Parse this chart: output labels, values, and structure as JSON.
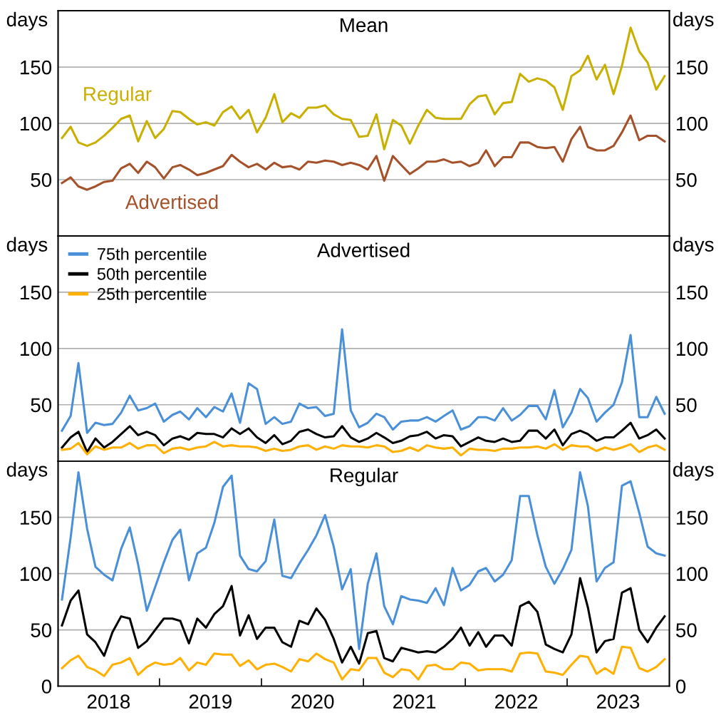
{
  "chart_data": [
    {
      "type": "line",
      "title": "Mean",
      "ylabel": "days",
      "y2label": "days",
      "x": [
        "2018-01-15",
        "2018-02-15",
        "2018-03-15",
        "2018-04-15",
        "2018-05-15",
        "2018-06-15",
        "2018-07-15",
        "2018-08-15",
        "2018-09-15",
        "2018-10-15",
        "2018-11-15",
        "2018-12-15",
        "2019-01-15",
        "2019-02-15",
        "2019-03-15",
        "2019-04-15",
        "2019-05-15",
        "2019-06-15",
        "2019-07-15",
        "2019-08-15",
        "2019-09-15",
        "2019-10-15",
        "2019-11-15",
        "2019-12-15",
        "2020-01-15",
        "2020-02-15",
        "2020-03-15",
        "2020-04-15",
        "2020-05-15",
        "2020-06-15",
        "2020-07-15",
        "2020-08-15",
        "2020-09-15",
        "2020-10-15",
        "2020-11-15",
        "2020-12-15",
        "2021-01-15",
        "2021-02-15",
        "2021-03-15",
        "2021-04-15",
        "2021-05-15",
        "2021-06-15",
        "2021-07-15",
        "2021-08-15",
        "2021-09-15",
        "2021-10-15",
        "2021-11-15",
        "2021-12-15",
        "2022-01-15",
        "2022-02-15",
        "2022-03-15",
        "2022-04-15",
        "2022-05-15",
        "2022-06-15",
        "2022-07-15",
        "2022-08-15",
        "2022-09-15",
        "2022-10-15",
        "2022-11-15",
        "2022-12-15",
        "2023-01-15",
        "2023-02-15",
        "2023-03-15",
        "2023-04-15",
        "2023-05-15",
        "2023-06-15",
        "2023-07-15",
        "2023-08-15",
        "2023-09-15",
        "2023-10-15",
        "2023-11-15",
        "2023-12-15"
      ],
      "series": [
        {
          "name": "Regular",
          "color": "#c9b000",
          "values": [
            87,
            97,
            83,
            80,
            83,
            89,
            96,
            104,
            107,
            84,
            102,
            87,
            95,
            111,
            110,
            104,
            99,
            101,
            98,
            110,
            115,
            104,
            112,
            92,
            105,
            126,
            101,
            109,
            105,
            114,
            114,
            116,
            108,
            104,
            103,
            88,
            89,
            108,
            77,
            103,
            98,
            82,
            98,
            112,
            105,
            104,
            104,
            104,
            117,
            124,
            125,
            108,
            118,
            119,
            144,
            137,
            140,
            138,
            132,
            112,
            142,
            147,
            160,
            139,
            152,
            126,
            151,
            185,
            164,
            154,
            130,
            142
          ]
        },
        {
          "name": "Advertised",
          "color": "#a5522a",
          "values": [
            47,
            52,
            44,
            41,
            44,
            48,
            49,
            60,
            64,
            56,
            66,
            61,
            51,
            61,
            63,
            59,
            54,
            56,
            59,
            62,
            72,
            66,
            61,
            64,
            59,
            65,
            61,
            62,
            59,
            66,
            65,
            67,
            66,
            63,
            65,
            63,
            59,
            71,
            49,
            71,
            63,
            55,
            60,
            66,
            66,
            68,
            65,
            66,
            62,
            65,
            76,
            62,
            70,
            70,
            83,
            83,
            79,
            78,
            79,
            66,
            86,
            97,
            79,
            76,
            76,
            80,
            92,
            107,
            85,
            89,
            89,
            84
          ]
        }
      ],
      "xlim": [
        "2018-01-01",
        "2024-01-01"
      ],
      "ylim": [
        0,
        200
      ],
      "yticks": [
        50,
        100,
        150
      ],
      "y2lim": [
        0,
        200
      ],
      "y2ticks": [
        50,
        100,
        150
      ],
      "grid": "y",
      "legend": false,
      "tick_labels": "y",
      "line_style": "solid",
      "marker": "none"
    },
    {
      "type": "line",
      "title": "Advertised",
      "ylabel": "days",
      "y2label": "days",
      "x": [
        "2018-01-15",
        "2018-02-15",
        "2018-03-15",
        "2018-04-15",
        "2018-05-15",
        "2018-06-15",
        "2018-07-15",
        "2018-08-15",
        "2018-09-15",
        "2018-10-15",
        "2018-11-15",
        "2018-12-15",
        "2019-01-15",
        "2019-02-15",
        "2019-03-15",
        "2019-04-15",
        "2019-05-15",
        "2019-06-15",
        "2019-07-15",
        "2019-08-15",
        "2019-09-15",
        "2019-10-15",
        "2019-11-15",
        "2019-12-15",
        "2020-01-15",
        "2020-02-15",
        "2020-03-15",
        "2020-04-15",
        "2020-05-15",
        "2020-06-15",
        "2020-07-15",
        "2020-08-15",
        "2020-09-15",
        "2020-10-15",
        "2020-11-15",
        "2020-12-15",
        "2021-01-15",
        "2021-02-15",
        "2021-03-15",
        "2021-04-15",
        "2021-05-15",
        "2021-06-15",
        "2021-07-15",
        "2021-08-15",
        "2021-09-15",
        "2021-10-15",
        "2021-11-15",
        "2021-12-15",
        "2022-01-15",
        "2022-02-15",
        "2022-03-15",
        "2022-04-15",
        "2022-05-15",
        "2022-06-15",
        "2022-07-15",
        "2022-08-15",
        "2022-09-15",
        "2022-10-15",
        "2022-11-15",
        "2022-12-15",
        "2023-01-15",
        "2023-02-15",
        "2023-03-15",
        "2023-04-15",
        "2023-05-15",
        "2023-06-15",
        "2023-07-15",
        "2023-08-15",
        "2023-09-15",
        "2023-10-15",
        "2023-11-15",
        "2023-12-15"
      ],
      "series": [
        {
          "name": "75th percentile",
          "color": "#4a90d9",
          "values": [
            27,
            40,
            87,
            25,
            34,
            32,
            33,
            43,
            58,
            45,
            47,
            51,
            35,
            41,
            44,
            37,
            47,
            39,
            48,
            44,
            60,
            34,
            69,
            64,
            33,
            39,
            33,
            35,
            51,
            47,
            48,
            40,
            42,
            117,
            45,
            30,
            34,
            42,
            39,
            28,
            35,
            36,
            36,
            39,
            35,
            40,
            45,
            28,
            31,
            39,
            39,
            36,
            47,
            36,
            41,
            49,
            49,
            37,
            63,
            30,
            43,
            64,
            56,
            35,
            43,
            50,
            70,
            112,
            39,
            39,
            57,
            42
          ]
        },
        {
          "name": "50th percentile",
          "color": "#000000",
          "values": [
            12,
            21,
            26,
            8,
            20,
            12,
            17,
            24,
            31,
            23,
            26,
            23,
            14,
            20,
            22,
            19,
            25,
            24,
            24,
            21,
            29,
            24,
            29,
            21,
            16,
            23,
            15,
            18,
            26,
            28,
            24,
            21,
            22,
            31,
            21,
            17,
            20,
            25,
            21,
            16,
            18,
            22,
            23,
            26,
            20,
            23,
            22,
            13,
            17,
            21,
            18,
            17,
            20,
            17,
            18,
            27,
            27,
            20,
            28,
            14,
            24,
            27,
            24,
            18,
            21,
            21,
            27,
            34,
            20,
            23,
            28,
            20
          ]
        },
        {
          "name": "25th percentile",
          "color": "#ffb000",
          "values": [
            10,
            11,
            16,
            6,
            13,
            10,
            12,
            12,
            16,
            11,
            14,
            14,
            7,
            11,
            12,
            10,
            12,
            13,
            17,
            13,
            14,
            13,
            13,
            12,
            9,
            11,
            9,
            10,
            13,
            14,
            10,
            13,
            11,
            14,
            13,
            13,
            12,
            14,
            13,
            8,
            9,
            12,
            9,
            14,
            12,
            11,
            12,
            5,
            11,
            10,
            10,
            9,
            11,
            11,
            12,
            12,
            13,
            11,
            15,
            10,
            14,
            13,
            13,
            9,
            12,
            10,
            12,
            15,
            8,
            12,
            14,
            10
          ]
        }
      ],
      "xlim": [
        "2018-01-01",
        "2024-01-01"
      ],
      "ylim": [
        0,
        200
      ],
      "yticks": [
        50,
        100,
        150
      ],
      "y2lim": [
        0,
        200
      ],
      "y2ticks": [
        50,
        100,
        150
      ],
      "grid": "y",
      "legend": "top left",
      "tick_labels": "y",
      "line_style": "solid",
      "marker": "none"
    },
    {
      "type": "line",
      "title": "Regular",
      "ylabel": "days",
      "y2label": "days",
      "x": [
        "2018-01-15",
        "2018-02-15",
        "2018-03-15",
        "2018-04-15",
        "2018-05-15",
        "2018-06-15",
        "2018-07-15",
        "2018-08-15",
        "2018-09-15",
        "2018-10-15",
        "2018-11-15",
        "2018-12-15",
        "2019-01-15",
        "2019-02-15",
        "2019-03-15",
        "2019-04-15",
        "2019-05-15",
        "2019-06-15",
        "2019-07-15",
        "2019-08-15",
        "2019-09-15",
        "2019-10-15",
        "2019-11-15",
        "2019-12-15",
        "2020-01-15",
        "2020-02-15",
        "2020-03-15",
        "2020-04-15",
        "2020-05-15",
        "2020-06-15",
        "2020-07-15",
        "2020-08-15",
        "2020-09-15",
        "2020-10-15",
        "2020-11-15",
        "2020-12-15",
        "2021-01-15",
        "2021-02-15",
        "2021-03-15",
        "2021-04-15",
        "2021-05-15",
        "2021-06-15",
        "2021-07-15",
        "2021-08-15",
        "2021-09-15",
        "2021-10-15",
        "2021-11-15",
        "2021-12-15",
        "2022-01-15",
        "2022-02-15",
        "2022-03-15",
        "2022-04-15",
        "2022-05-15",
        "2022-06-15",
        "2022-07-15",
        "2022-08-15",
        "2022-09-15",
        "2022-10-15",
        "2022-11-15",
        "2022-12-15",
        "2023-01-15",
        "2023-02-15",
        "2023-03-15",
        "2023-04-15",
        "2023-05-15",
        "2023-06-15",
        "2023-07-15",
        "2023-08-15",
        "2023-09-15",
        "2023-10-15",
        "2023-11-15",
        "2023-12-15"
      ],
      "series": [
        {
          "color": "#4a90d9",
          "values": [
            77,
            132,
            190,
            140,
            106,
            99,
            94,
            122,
            141,
            108,
            67,
            88,
            110,
            130,
            139,
            94,
            118,
            123,
            145,
            177,
            187,
            116,
            104,
            102,
            111,
            148,
            98,
            96,
            109,
            121,
            134,
            152,
            124,
            86,
            104,
            33,
            91,
            118,
            71,
            55,
            80,
            77,
            76,
            74,
            87,
            72,
            105,
            85,
            90,
            102,
            105,
            93,
            99,
            112,
            169,
            169,
            134,
            106,
            91,
            104,
            121,
            190,
            160,
            93,
            105,
            110,
            178,
            182,
            154,
            124,
            118,
            116
          ]
        },
        {
          "color": "#000000",
          "values": [
            54,
            76,
            85,
            46,
            39,
            27,
            48,
            62,
            60,
            34,
            40,
            50,
            60,
            60,
            58,
            38,
            60,
            52,
            64,
            71,
            89,
            45,
            63,
            42,
            52,
            52,
            39,
            35,
            58,
            55,
            69,
            59,
            42,
            21,
            35,
            20,
            47,
            49,
            25,
            22,
            34,
            32,
            30,
            31,
            30,
            35,
            42,
            52,
            36,
            48,
            35,
            45,
            45,
            36,
            71,
            75,
            66,
            37,
            33,
            30,
            46,
            96,
            70,
            30,
            40,
            42,
            83,
            87,
            50,
            39,
            52,
            62
          ]
        },
        {
          "color": "#ffb000",
          "values": [
            16,
            23,
            27,
            17,
            14,
            9,
            19,
            21,
            25,
            10,
            17,
            21,
            19,
            20,
            25,
            14,
            21,
            19,
            29,
            28,
            28,
            18,
            23,
            15,
            19,
            20,
            17,
            13,
            24,
            22,
            29,
            24,
            21,
            6,
            15,
            14,
            25,
            25,
            12,
            8,
            15,
            14,
            6,
            18,
            19,
            15,
            15,
            21,
            20,
            14,
            15,
            15,
            15,
            13,
            29,
            30,
            29,
            13,
            12,
            10,
            19,
            27,
            26,
            11,
            16,
            11,
            35,
            34,
            16,
            13,
            17,
            24
          ]
        }
      ],
      "xlim": [
        "2018-01-01",
        "2024-01-01"
      ],
      "xticks": [
        {
          "value": "2018-07-01",
          "label": "2018"
        },
        {
          "value": "2019-07-01",
          "label": "2019"
        },
        {
          "value": "2020-07-01",
          "label": "2020"
        },
        {
          "value": "2021-07-01",
          "label": "2021"
        },
        {
          "value": "2022-07-01",
          "label": "2022"
        },
        {
          "value": "2023-07-01",
          "label": "2023"
        }
      ],
      "ylim": [
        0,
        200
      ],
      "yticks": [
        0,
        50,
        100,
        150
      ],
      "y2lim": [
        0,
        200
      ],
      "y2ticks": [
        0,
        50,
        100,
        150
      ],
      "grid": "y",
      "legend": false,
      "line_style": "solid",
      "marker": "none"
    }
  ]
}
